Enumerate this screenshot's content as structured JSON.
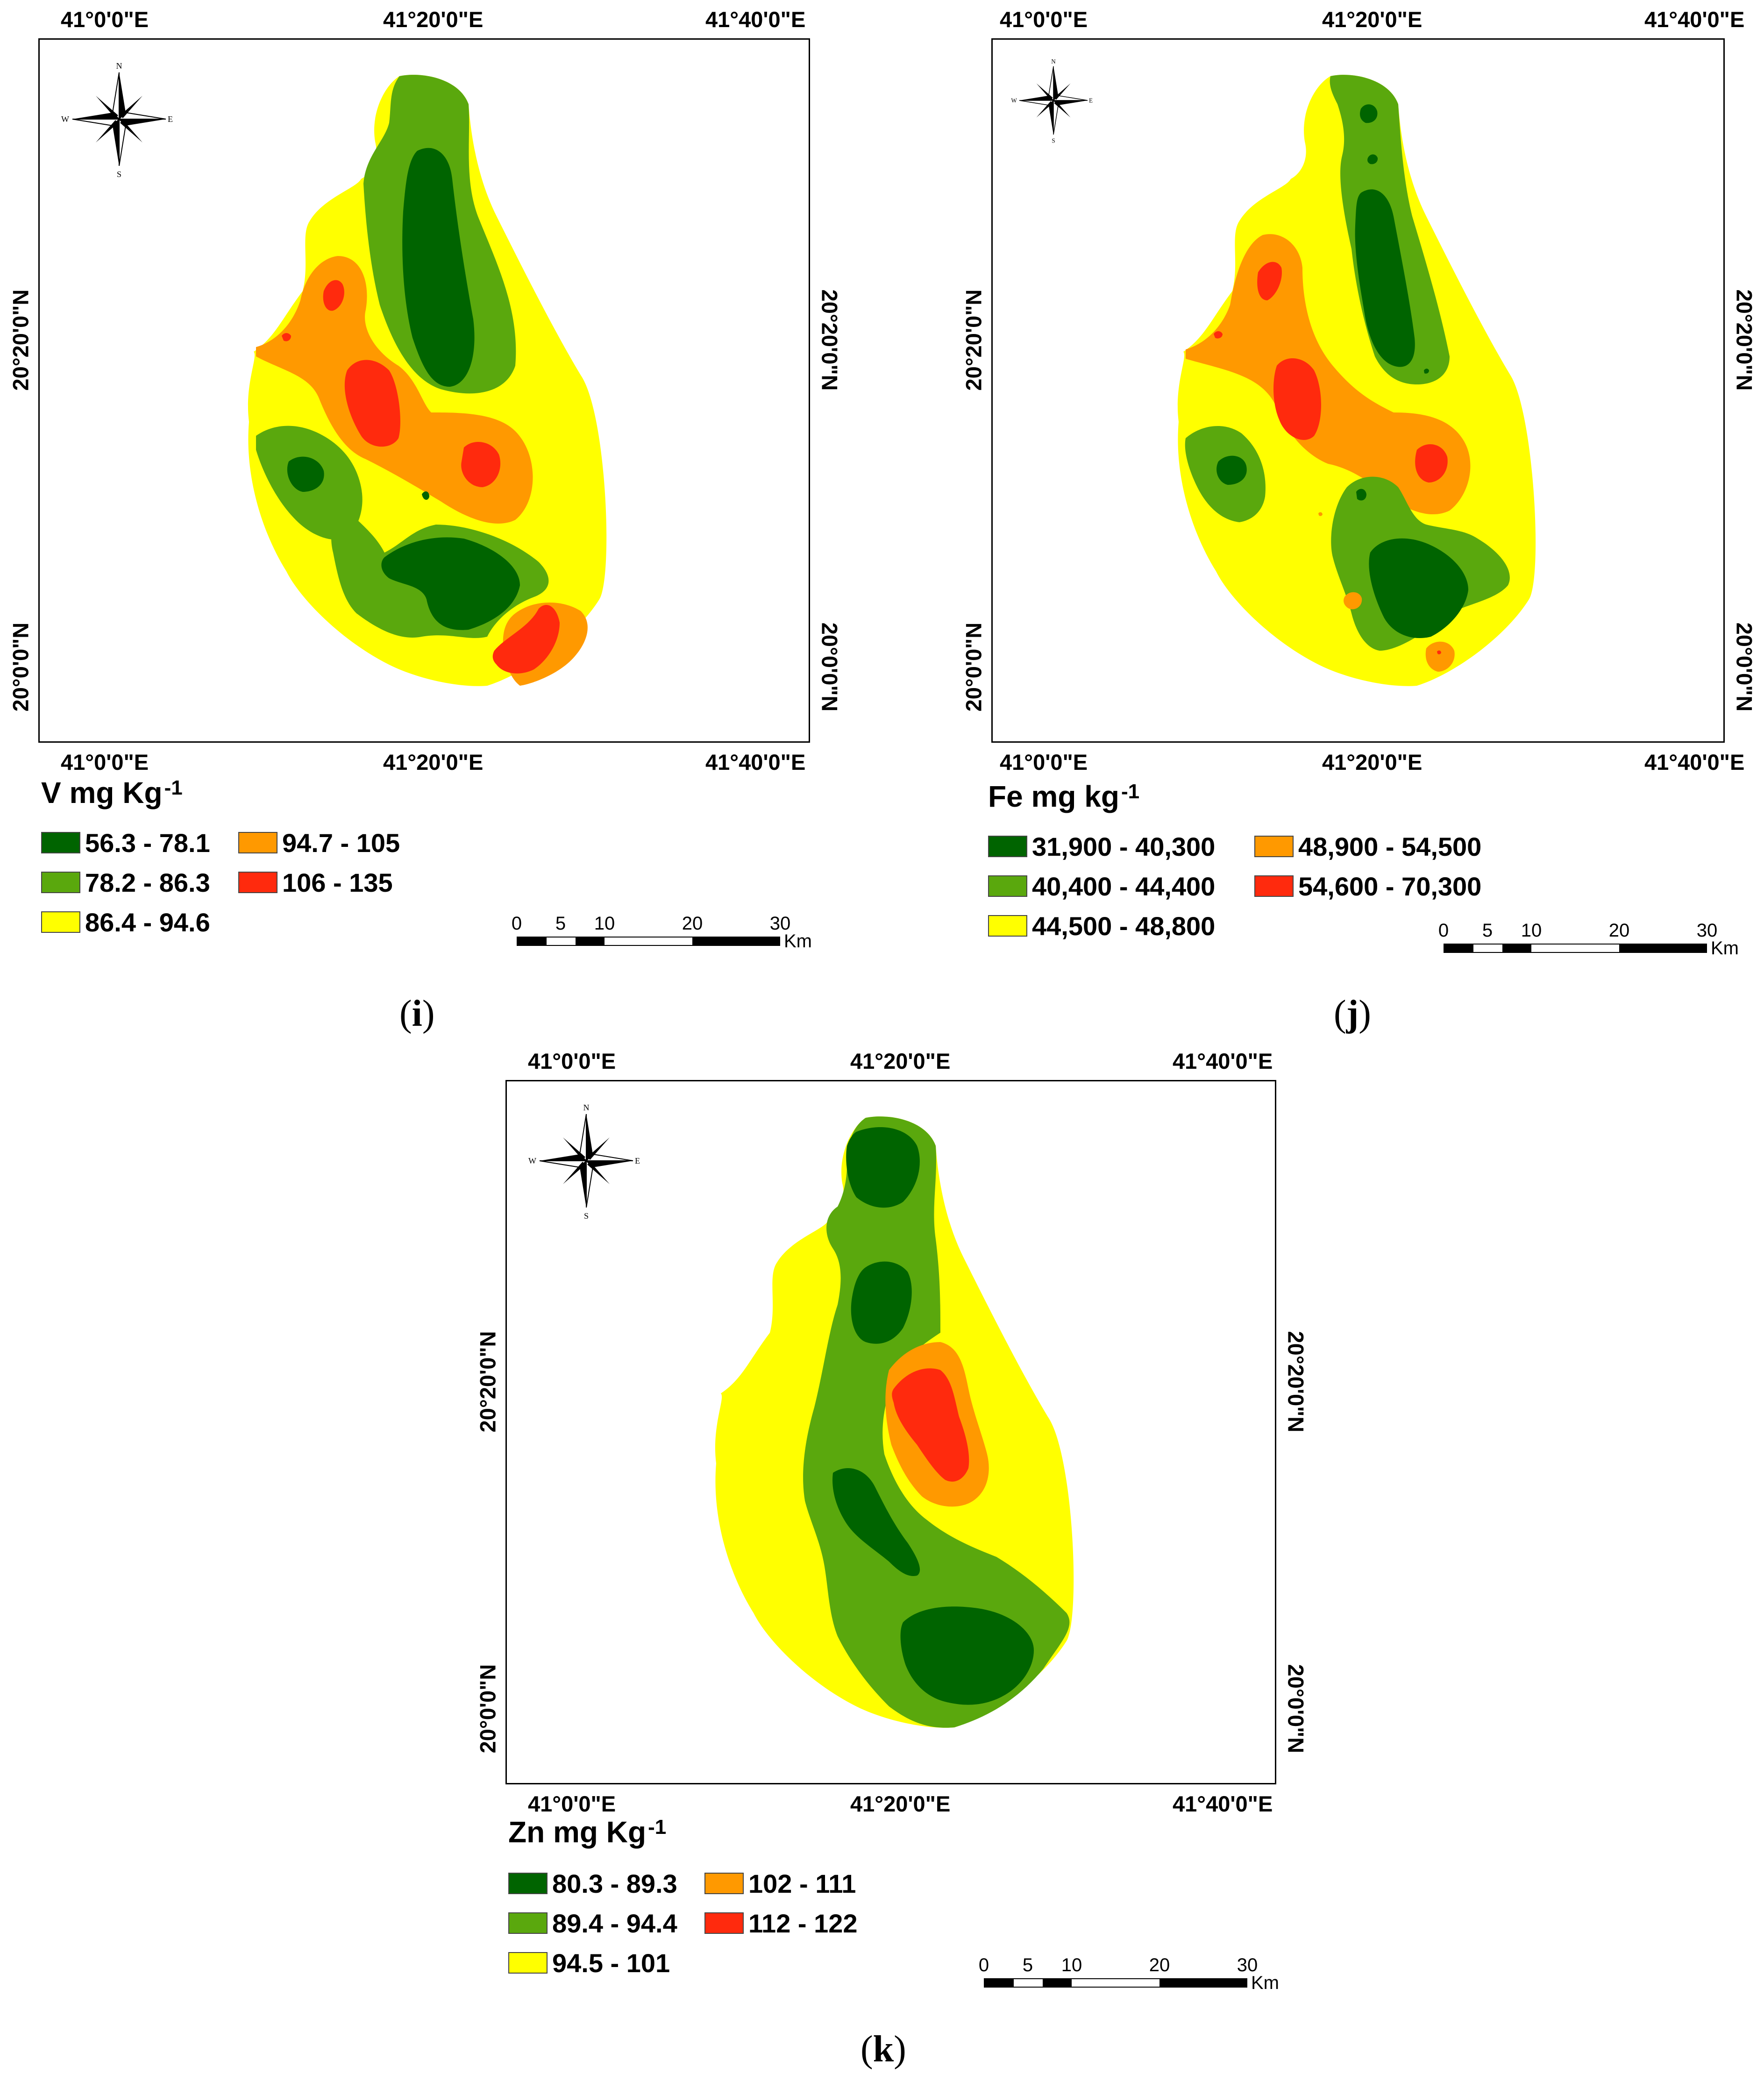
{
  "panels": {
    "i": {
      "caption_open": "(",
      "caption_letter": "i",
      "caption_close": ")",
      "lon_labels": [
        "41°0'0\"E",
        "41°20'0\"E",
        "41°40'0\"E"
      ],
      "lat_labels": [
        "20°20'0\"N",
        "20°0'0\"N"
      ],
      "compass": {
        "n": "N",
        "s": "S",
        "e": "E",
        "w": "W"
      },
      "legend_title": "V mg Kg",
      "legend_unit_sup": "-1",
      "legend": [
        {
          "range": "56.3 - 78.1",
          "color": "#006400"
        },
        {
          "range": "78.2 - 86.3",
          "color": "#5aa80d"
        },
        {
          "range": "86.4 - 94.6",
          "color": "#ffff00"
        },
        {
          "range": "94.7 - 105",
          "color": "#ff9900"
        },
        {
          "range": "106 - 135",
          "color": "#ff2a0d"
        }
      ],
      "scale": {
        "ticks": [
          "0",
          "5",
          "10",
          "20",
          "30"
        ],
        "unit": "Km"
      }
    },
    "j": {
      "caption_open": "(",
      "caption_letter": "j",
      "caption_close": ")",
      "lon_labels": [
        "41°0'0\"E",
        "41°20'0\"E",
        "41°40'0\"E"
      ],
      "lat_labels": [
        "20°20'0\"N",
        "20°0'0\"N"
      ],
      "compass": {
        "n": "N",
        "s": "S",
        "e": "E",
        "w": "W"
      },
      "legend_title": "Fe mg kg",
      "legend_unit_sup": "-1",
      "legend": [
        {
          "range": "31,900 - 40,300",
          "color": "#006400"
        },
        {
          "range": "40,400 - 44,400",
          "color": "#5aa80d"
        },
        {
          "range": "44,500 - 48,800",
          "color": "#ffff00"
        },
        {
          "range": "48,900 - 54,500",
          "color": "#ff9900"
        },
        {
          "range": "54,600 - 70,300",
          "color": "#ff2a0d"
        }
      ],
      "scale": {
        "ticks": [
          "0",
          "5",
          "10",
          "20",
          "30"
        ],
        "unit": "Km"
      }
    },
    "k": {
      "caption_open": "(",
      "caption_letter": "k",
      "caption_close": ")",
      "lon_labels": [
        "41°0'0\"E",
        "41°20'0\"E",
        "41°40'0\"E"
      ],
      "lat_labels": [
        "20°20'0\"N",
        "20°0'0\"N"
      ],
      "compass": {
        "n": "N",
        "s": "S",
        "e": "E",
        "w": "W"
      },
      "legend_title": "Zn mg Kg",
      "legend_unit_sup": "-1",
      "legend": [
        {
          "range": "80.3 - 89.3",
          "color": "#006400"
        },
        {
          "range": "89.4 - 94.4",
          "color": "#5aa80d"
        },
        {
          "range": "94.5 - 101",
          "color": "#ffff00"
        },
        {
          "range": "102 - 111",
          "color": "#ff9900"
        },
        {
          "range": "112 - 122",
          "color": "#ff2a0d"
        }
      ],
      "scale": {
        "ticks": [
          "0",
          "5",
          "10",
          "20",
          "30"
        ],
        "unit": "Km"
      }
    }
  }
}
